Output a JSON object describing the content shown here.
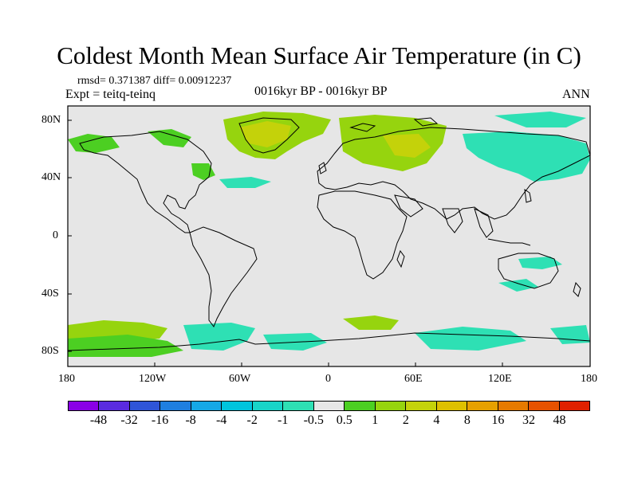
{
  "title": "Coldest Month Mean Surface Air Temperature (in C)",
  "stats": "rmsd= 0.371387 diff= 0.00912237",
  "expt": "Expt = teitq-teinq",
  "period": "0016kyr BP - 0016kyr BP",
  "season": "ANN",
  "y_axis_labels": [
    "80N",
    "40N",
    "0",
    "40S",
    "80S"
  ],
  "x_axis_labels": [
    "180",
    "120W",
    "60W",
    "0",
    "60E",
    "120E",
    "180"
  ],
  "colorbar": {
    "labels": [
      "-48",
      "-32",
      "-16",
      "-8",
      "-4",
      "-2",
      "-1",
      "-0.5",
      "0.5",
      "1",
      "2",
      "4",
      "8",
      "16",
      "32",
      "48"
    ],
    "colors": [
      "#8a00e6",
      "#5a2be0",
      "#2f55d8",
      "#1f7fe0",
      "#15a8e6",
      "#00c4dd",
      "#18d4c8",
      "#2ee0b4",
      "#e6e6e6",
      "#4ccf22",
      "#96d40e",
      "#c4d20a",
      "#dec000",
      "#e6a000",
      "#e67a00",
      "#e65200",
      "#e02000"
    ]
  },
  "colors": {
    "background": "#e6e6e6",
    "negative_small": "#2ee0b4",
    "negative_mid": "#18d4c8",
    "positive_small": "#4ccf22",
    "positive_mid": "#96d40e",
    "positive_high": "#c4d20a"
  }
}
